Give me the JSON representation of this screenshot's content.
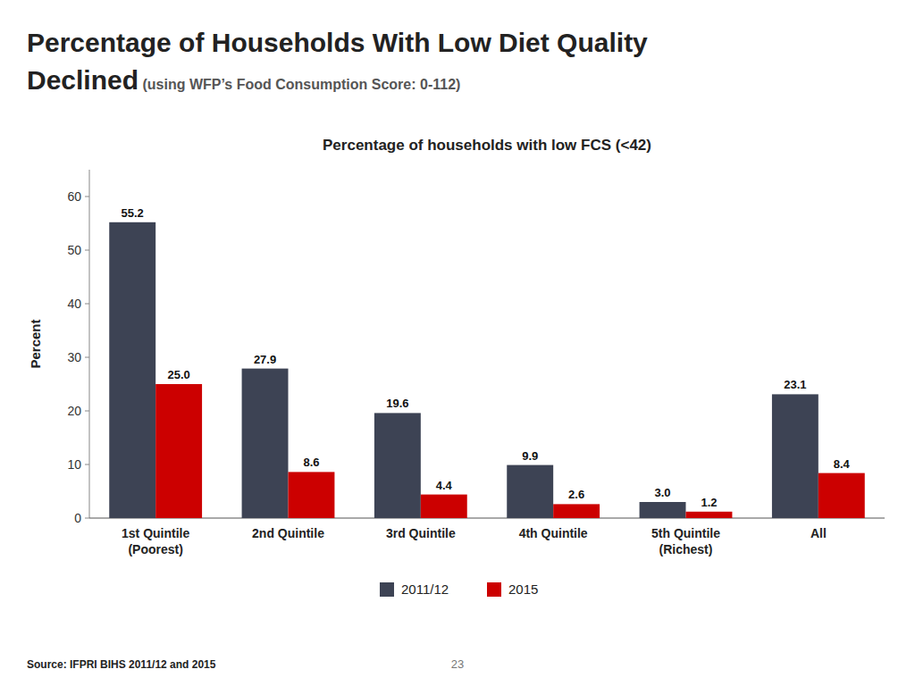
{
  "heading": [
    "Percentage of Households With Low Diet Quality",
    "Declined"
  ],
  "heading_note": " (using WFP’s Food Consumption Score: 0-112)",
  "source": "Source: IFPRI BIHS 2011/12 and 2015",
  "page_number": "23",
  "chart_data": {
    "type": "bar",
    "title": "Percentage of households with low FCS (<42)",
    "categories": [
      "1st Quintile\n(Poorest)",
      "2nd Quintile",
      "3rd Quintile",
      "4th Quintile",
      "5th Quintile\n(Richest)",
      "All"
    ],
    "series": [
      {
        "name": "2011/12",
        "color": "#3d4354",
        "values": [
          55.2,
          27.9,
          19.6,
          9.9,
          3.0,
          23.1
        ],
        "value_labels": [
          "55.2",
          "27.9",
          "19.6",
          "9.9",
          "3.0",
          "23.1"
        ]
      },
      {
        "name": "2015",
        "color": "#cc0000",
        "values": [
          25.0,
          8.6,
          4.4,
          2.6,
          1.2,
          8.4
        ],
        "value_labels": [
          "25.0",
          "8.6",
          "4.4",
          "2.6",
          "1.2",
          "8.4"
        ]
      }
    ],
    "ylabel": "Percent",
    "ylim": [
      0,
      65
    ],
    "yticks": [
      0,
      10,
      20,
      30,
      40,
      50,
      60
    ],
    "grid": false,
    "legend": "bottom",
    "data_labels": true
  }
}
